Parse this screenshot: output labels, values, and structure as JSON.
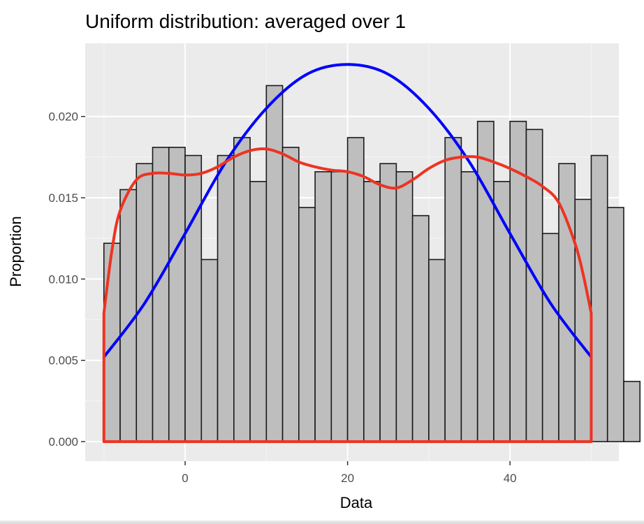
{
  "chart_data": {
    "type": "bar",
    "title": "Uniform distribution: averaged over 1",
    "xlabel": "Data",
    "ylabel": "Proportion",
    "xlim": [
      -12.3,
      53.4
    ],
    "ylim": [
      -0.0012,
      0.0245
    ],
    "x_ticks": [
      0,
      20,
      40
    ],
    "y_ticks": [
      0.0,
      0.005,
      0.01,
      0.015,
      0.02
    ],
    "y_tick_labels": [
      "0.000",
      "0.005",
      "0.010",
      "0.015",
      "0.020"
    ],
    "x_tick_labels": [
      "0",
      "20",
      "40"
    ],
    "grid": true,
    "bins": {
      "start": -10,
      "width": 2,
      "values": [
        0.0122,
        0.0155,
        0.0171,
        0.0181,
        0.0181,
        0.0176,
        0.0112,
        0.0176,
        0.0187,
        0.016,
        0.0219,
        0.0181,
        0.0144,
        0.0166,
        0.0166,
        0.0187,
        0.016,
        0.0171,
        0.0166,
        0.0139,
        0.0112,
        0.0187,
        0.0166,
        0.0197,
        0.016,
        0.0197,
        0.0192,
        0.0128,
        0.0171,
        0.0149,
        0.0176,
        0.0144,
        0.0037
      ]
    },
    "series": [
      {
        "type": "line",
        "color": "#0000ff",
        "x": [
          -10,
          -5,
          0,
          5,
          10,
          15,
          20,
          25,
          30,
          35,
          40,
          45,
          50
        ],
        "y": [
          0.0052,
          0.0085,
          0.0128,
          0.0172,
          0.0205,
          0.0226,
          0.0232,
          0.0226,
          0.0205,
          0.0172,
          0.0128,
          0.0085,
          0.0052
        ]
      },
      {
        "type": "density",
        "color": "#ee3322",
        "x": [
          -10,
          -9,
          -8,
          -6,
          -4,
          -2,
          0,
          2,
          4,
          6,
          8,
          10,
          12,
          14,
          16,
          18,
          20,
          22,
          24,
          26,
          28,
          30,
          32,
          34,
          36,
          38,
          40,
          42,
          44,
          46,
          48,
          49,
          50
        ],
        "y": [
          0.0079,
          0.0118,
          0.0142,
          0.0161,
          0.0165,
          0.0165,
          0.0164,
          0.0165,
          0.0169,
          0.0175,
          0.0179,
          0.018,
          0.0177,
          0.0172,
          0.0169,
          0.0167,
          0.0166,
          0.0163,
          0.0158,
          0.0156,
          0.0161,
          0.0168,
          0.0173,
          0.0175,
          0.0175,
          0.0172,
          0.0168,
          0.0163,
          0.0157,
          0.0147,
          0.0122,
          0.0103,
          0.0079
        ]
      }
    ],
    "colors": {
      "panel": "#ebebeb",
      "grid_major": "#ffffff",
      "grid_minor": "#f5f5f5",
      "bar_fill": "#bebebe",
      "bar_stroke": "#1a1a1a",
      "axis_text": "#4d4d4d"
    }
  }
}
